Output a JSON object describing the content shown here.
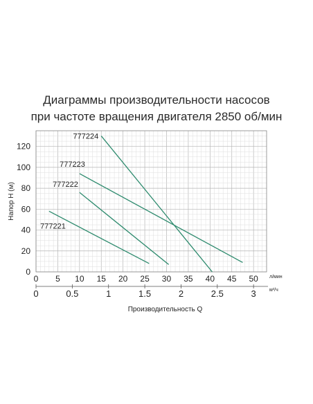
{
  "chart_data": {
    "type": "line",
    "title_line1": "Диаграммы производительности насосов",
    "title_line2": "при частоте вращения двигателя 2850 об/мин",
    "ylabel": "Напор H (м)",
    "xlabel": "Производительность   Q",
    "x_unit_top": "л/мин",
    "x_unit_bottom": "м³/ч",
    "ylim": [
      0,
      135
    ],
    "xlim_lmin": [
      0,
      53
    ],
    "y_ticks": [
      0,
      20,
      40,
      60,
      80,
      100,
      120
    ],
    "x_ticks_lmin": [
      0,
      5,
      10,
      15,
      20,
      25,
      30,
      35,
      40,
      45,
      50
    ],
    "x_ticks_m3h": [
      "0",
      "0.5",
      "1",
      "1.5",
      "2",
      "2.5",
      "3"
    ],
    "x_ticks_m3h_values": [
      0,
      0.5,
      1,
      1.5,
      2,
      2.5,
      3
    ],
    "grid": true,
    "series": [
      {
        "name": "777221",
        "x": [
          3,
          26
        ],
        "y": [
          58,
          8
        ]
      },
      {
        "name": "777222",
        "x": [
          10,
          30.5
        ],
        "y": [
          76,
          7
        ]
      },
      {
        "name": "777223",
        "x": [
          10,
          47.5
        ],
        "y": [
          94,
          9
        ]
      },
      {
        "name": "777224",
        "x": [
          15,
          40.5
        ],
        "y": [
          130,
          0
        ]
      }
    ],
    "line_color": "#2e8b6e"
  }
}
